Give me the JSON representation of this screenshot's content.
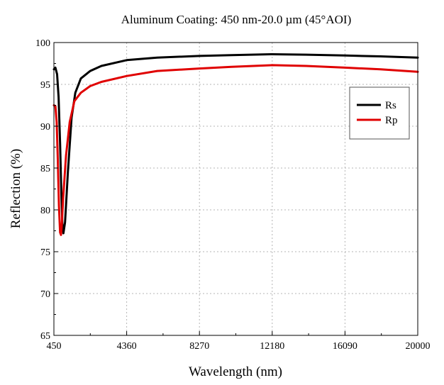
{
  "chart_data": {
    "type": "line",
    "title": "Aluminum Coating: 450 nm-20.0 µm (45°AOI)",
    "xlabel": "Wavelength (nm)",
    "ylabel": "Reflection (%)",
    "xlim": [
      450,
      20000
    ],
    "ylim": [
      65,
      100
    ],
    "xticks": [
      450,
      4360,
      8270,
      12180,
      16090,
      20000
    ],
    "yticks": [
      65,
      70,
      75,
      80,
      85,
      90,
      95,
      100
    ],
    "grid": true,
    "legend_position": "top-right",
    "series": [
      {
        "name": "Rs",
        "color": "#000000",
        "x": [
          450,
          530,
          620,
          700,
          780,
          850,
          900,
          960,
          1050,
          1200,
          1400,
          1600,
          1900,
          2400,
          3000,
          4360,
          6000,
          8270,
          10000,
          12180,
          14000,
          16090,
          18000,
          20000
        ],
        "y": [
          96.8,
          97.0,
          96.2,
          93.5,
          88.0,
          82.0,
          78.5,
          77.2,
          78.5,
          84.5,
          91.0,
          94.0,
          95.7,
          96.6,
          97.2,
          97.9,
          98.2,
          98.4,
          98.5,
          98.6,
          98.55,
          98.45,
          98.35,
          98.2
        ]
      },
      {
        "name": "Rp",
        "color": "#e00000",
        "x": [
          450,
          530,
          600,
          660,
          720,
          780,
          830,
          870,
          950,
          1100,
          1300,
          1550,
          1900,
          2400,
          3000,
          4360,
          6000,
          8270,
          10000,
          12180,
          14000,
          16090,
          18000,
          20000
        ],
        "y": [
          92.5,
          92.4,
          90.5,
          86.0,
          80.5,
          77.3,
          77.0,
          78.0,
          81.5,
          86.5,
          90.5,
          93.0,
          94.0,
          94.8,
          95.3,
          96.0,
          96.6,
          96.9,
          97.1,
          97.3,
          97.2,
          97.0,
          96.8,
          96.5
        ]
      }
    ]
  }
}
